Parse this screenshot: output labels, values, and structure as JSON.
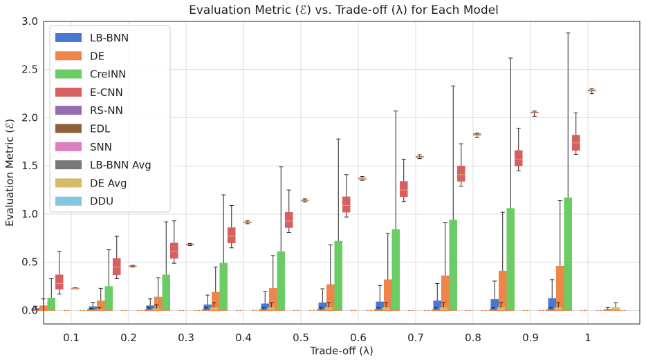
{
  "chart_data": {
    "type": "box",
    "title": "Evaluation Metric (ℰ) vs. Trade-off (λ) for Each Model",
    "xlabel": "Trade-off (λ)",
    "ylabel": "Evaluation Metric (ℰ)",
    "categories": [
      "0.1",
      "0.2",
      "0.3",
      "0.4",
      "0.5",
      "0.6",
      "0.7",
      "0.8",
      "0.9",
      "1"
    ],
    "ylim": [
      -0.14,
      3.0
    ],
    "yticks": [
      0.0,
      0.5,
      1.0,
      1.5,
      2.0,
      2.5,
      3.0
    ],
    "ytick_labels": [
      "0.0",
      "0.5",
      "1.0",
      "1.5",
      "2.0",
      "2.5",
      "3.0"
    ],
    "grid": true,
    "legend_position": "top-left",
    "series": [
      {
        "name": "LB-BNN",
        "color": "#4878d0",
        "q1": [
          0.0,
          0.0,
          0.0,
          0.0,
          0.0,
          0.0,
          0.0,
          0.0,
          0.0,
          0.0
        ],
        "q3": [
          0.02,
          0.04,
          0.05,
          0.06,
          0.07,
          0.08,
          0.09,
          0.1,
          0.115,
          0.125
        ],
        "whisker_low": [
          0.0,
          0.0,
          0.0,
          0.0,
          0.0,
          0.0,
          0.0,
          0.0,
          0.0,
          0.0
        ],
        "whisker_high": [
          0.045,
          0.085,
          0.12,
          0.16,
          0.195,
          0.225,
          0.26,
          0.28,
          0.305,
          0.32
        ]
      },
      {
        "name": "DE",
        "color": "#ee854a",
        "q1": [
          0.0,
          0.0,
          0.0,
          0.0,
          0.0,
          0.0,
          0.0,
          0.0,
          0.0,
          0.0
        ],
        "q3": [
          0.05,
          0.1,
          0.14,
          0.19,
          0.23,
          0.27,
          0.32,
          0.36,
          0.41,
          0.46
        ],
        "whisker_low": [
          0.0,
          0.0,
          0.0,
          0.0,
          0.0,
          0.0,
          0.0,
          0.0,
          0.0,
          0.0
        ],
        "whisker_high": [
          0.12,
          0.23,
          0.34,
          0.45,
          0.57,
          0.68,
          0.8,
          0.91,
          1.02,
          1.14
        ]
      },
      {
        "name": "CreINN",
        "color": "#6acc64",
        "q1": [
          0.0,
          0.0,
          0.0,
          0.0,
          0.0,
          0.0,
          0.0,
          0.0,
          0.0,
          0.0
        ],
        "q3": [
          0.13,
          0.25,
          0.37,
          0.49,
          0.61,
          0.72,
          0.84,
          0.94,
          1.06,
          1.17
        ],
        "whisker_low": [
          0.0,
          0.0,
          0.0,
          0.0,
          0.0,
          0.0,
          0.0,
          0.0,
          0.0,
          0.0
        ],
        "whisker_high": [
          0.33,
          0.63,
          0.92,
          1.2,
          1.49,
          1.78,
          2.07,
          2.33,
          2.62,
          2.88
        ]
      },
      {
        "name": "E-CNN",
        "color": "#d65f5f",
        "q1": [
          0.22,
          0.37,
          0.54,
          0.7,
          0.86,
          1.02,
          1.18,
          1.34,
          1.5,
          1.66
        ],
        "median": [
          0.28,
          0.45,
          0.61,
          0.77,
          0.93,
          1.09,
          1.25,
          1.41,
          1.57,
          1.74
        ],
        "q3": [
          0.37,
          0.54,
          0.7,
          0.86,
          1.02,
          1.18,
          1.34,
          1.5,
          1.66,
          1.82
        ],
        "whisker_low": [
          0.17,
          0.33,
          0.49,
          0.65,
          0.81,
          0.97,
          1.13,
          1.29,
          1.45,
          1.62
        ],
        "whisker_high": [
          0.61,
          0.77,
          0.93,
          1.09,
          1.25,
          1.41,
          1.57,
          1.73,
          1.89,
          2.05
        ]
      },
      {
        "name": "RS-NN",
        "color": "#956cb4",
        "values": [
          0,
          0,
          0,
          0,
          0,
          0,
          0,
          0,
          0,
          0
        ]
      },
      {
        "name": "EDL",
        "color": "#8c613c",
        "q1": [
          0.226,
          0.456,
          0.68,
          0.91,
          1.136,
          1.362,
          1.588,
          1.818,
          2.048,
          2.276
        ],
        "median": [
          0.23,
          0.46,
          0.685,
          0.915,
          1.142,
          1.368,
          1.594,
          1.826,
          2.054,
          2.283
        ],
        "q3": [
          0.233,
          0.464,
          0.69,
          0.92,
          1.148,
          1.374,
          1.6,
          1.834,
          2.06,
          2.29
        ],
        "whisker_low": [
          0.223,
          0.45,
          0.674,
          0.9,
          1.126,
          1.35,
          1.576,
          1.796,
          2.016,
          2.25
        ],
        "whisker_high": [
          0.236,
          0.468,
          0.696,
          0.93,
          1.158,
          1.39,
          1.616,
          1.84,
          2.07,
          2.3
        ]
      },
      {
        "name": "SNN",
        "color": "#dc7ec0",
        "values": [
          0,
          0,
          0,
          0,
          0,
          0,
          0,
          0,
          0,
          0
        ]
      },
      {
        "name": "LB-BNN Avg",
        "color": "#797979",
        "q1": [
          0.0,
          0.0,
          0.0,
          0.0,
          0.0,
          0.0,
          0.0,
          0.0,
          0.0,
          0.0
        ],
        "q3": [
          0.01,
          0.01,
          0.01,
          0.01,
          0.01,
          0.01,
          0.01,
          0.01,
          0.01,
          0.01
        ],
        "whisker_low": [
          0.0,
          0.0,
          0.0,
          0.0,
          0.0,
          0.0,
          0.0,
          0.0,
          0.0,
          0.0
        ],
        "whisker_high": [
          0.02,
          0.03,
          0.03,
          0.03,
          0.03,
          0.03,
          0.03,
          0.03,
          0.03,
          0.03
        ]
      },
      {
        "name": "DE Avg",
        "color": "#d5bb67",
        "q1": [
          0.0,
          0.0,
          0.0,
          0.0,
          0.0,
          0.0,
          0.0,
          0.0,
          0.0,
          0.0
        ],
        "q3": [
          0.01,
          0.02,
          0.03,
          0.03,
          0.03,
          0.03,
          0.03,
          0.03,
          0.03,
          0.03
        ],
        "whisker_low": [
          0.0,
          0.0,
          0.0,
          0.0,
          0.0,
          0.0,
          0.0,
          0.0,
          0.0,
          0.0
        ],
        "whisker_high": [
          0.03,
          0.06,
          0.08,
          0.08,
          0.08,
          0.08,
          0.08,
          0.08,
          0.08,
          0.08
        ]
      },
      {
        "name": "DDU",
        "color": "#82c6e2",
        "values": [
          0,
          0,
          0,
          0,
          0,
          0,
          0,
          0,
          0,
          0
        ]
      }
    ]
  }
}
